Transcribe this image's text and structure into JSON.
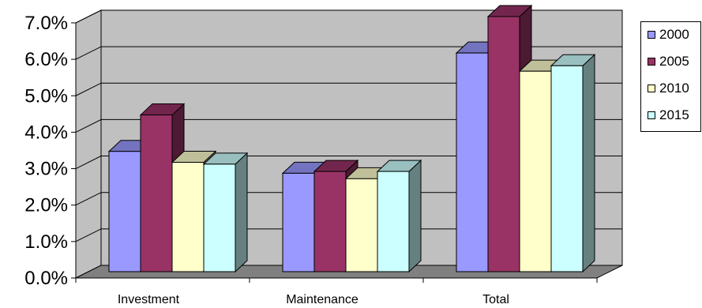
{
  "chart_data": {
    "type": "bar",
    "categories": [
      "Investment",
      "Maintenance",
      "Total"
    ],
    "series": [
      {
        "name": "2000",
        "values": [
          3.3,
          2.7,
          6.0
        ],
        "color": "#9999ff"
      },
      {
        "name": "2005",
        "values": [
          4.3,
          2.75,
          7.0
        ],
        "color": "#993366"
      },
      {
        "name": "2010",
        "values": [
          3.0,
          2.55,
          5.5
        ],
        "color": "#ffffcc"
      },
      {
        "name": "2015",
        "values": [
          2.95,
          2.75,
          5.65
        ],
        "color": "#ccffff"
      }
    ],
    "yticks": [
      "0.0%",
      "1.0%",
      "2.0%",
      "3.0%",
      "4.0%",
      "5.0%",
      "6.0%",
      "7.0%"
    ],
    "ylim": [
      0,
      7
    ],
    "title": "",
    "xlabel": "",
    "ylabel": "",
    "grid": true,
    "legend_position": "right",
    "colors": {
      "plot_wall": "#c0c0c0",
      "floor": "#808080"
    }
  }
}
